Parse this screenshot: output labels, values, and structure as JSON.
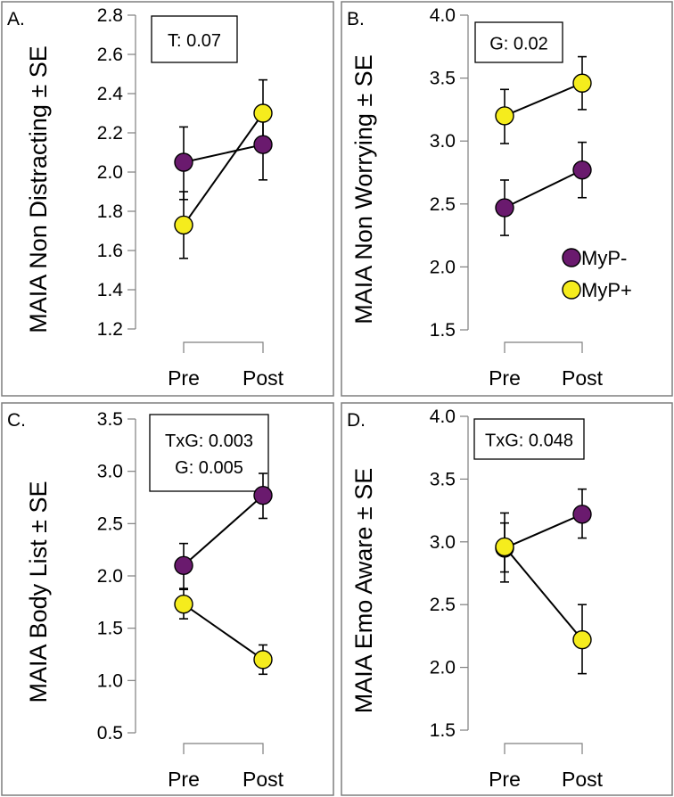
{
  "figure": {
    "colors": {
      "myp_minus": "#6a1a6e",
      "myp_plus": "#f5ec1d",
      "frame": "#7f7f7f"
    },
    "legend": [
      {
        "label": "MyP-",
        "color": "#6a1a6e"
      },
      {
        "label": "MyP+",
        "color": "#f5ec1d"
      }
    ]
  },
  "chart_data": [
    {
      "panel": "A.",
      "type": "line",
      "ylabel": "MAIA Non Distracting ± SE",
      "categories": [
        "Pre",
        "Post"
      ],
      "ylim": [
        1.2,
        2.8
      ],
      "yticks": [
        "1.2",
        "1.4",
        "1.6",
        "1.8",
        "2.0",
        "2.2",
        "2.4",
        "2.6",
        "2.8"
      ],
      "annotation": [
        "T: 0.07"
      ],
      "legend_position": "none",
      "series": [
        {
          "name": "MyP-",
          "values": [
            2.05,
            2.14
          ],
          "err_low": [
            1.86,
            1.96
          ],
          "err_high": [
            2.23,
            2.33
          ]
        },
        {
          "name": "MyP+",
          "values": [
            1.73,
            2.3
          ],
          "err_low": [
            1.56,
            2.12
          ],
          "err_high": [
            1.9,
            2.47
          ]
        }
      ]
    },
    {
      "panel": "B.",
      "type": "line",
      "ylabel": "MAIA Non Worrying ± SE",
      "categories": [
        "Pre",
        "Post"
      ],
      "ylim": [
        1.5,
        4.0
      ],
      "yticks": [
        "1.5",
        "2.0",
        "2.5",
        "3.0",
        "3.5",
        "4.0"
      ],
      "annotation": [
        "G: 0.02"
      ],
      "legend_position": "middle-right",
      "series": [
        {
          "name": "MyP-",
          "values": [
            2.47,
            2.77
          ],
          "err_low": [
            2.25,
            2.55
          ],
          "err_high": [
            2.69,
            2.99
          ]
        },
        {
          "name": "MyP+",
          "values": [
            3.2,
            3.46
          ],
          "err_low": [
            2.98,
            3.25
          ],
          "err_high": [
            3.41,
            3.67
          ]
        }
      ]
    },
    {
      "panel": "C.",
      "type": "line",
      "ylabel": "MAIA Body List ± SE",
      "categories": [
        "Pre",
        "Post"
      ],
      "ylim": [
        0.5,
        3.5
      ],
      "yticks": [
        "0.5",
        "1.0",
        "1.5",
        "2.0",
        "2.5",
        "3.0",
        "3.5"
      ],
      "annotation": [
        "TxG: 0.003",
        "G: 0.005"
      ],
      "legend_position": "none",
      "series": [
        {
          "name": "MyP-",
          "values": [
            2.1,
            2.77
          ],
          "err_low": [
            1.88,
            2.55
          ],
          "err_high": [
            2.31,
            2.98
          ]
        },
        {
          "name": "MyP+",
          "values": [
            1.73,
            1.2
          ],
          "err_low": [
            1.59,
            1.06
          ],
          "err_high": [
            1.87,
            1.34
          ]
        }
      ]
    },
    {
      "panel": "D.",
      "type": "line",
      "ylabel": "MAIA Emo Aware ± SE",
      "categories": [
        "Pre",
        "Post"
      ],
      "ylim": [
        1.5,
        4.0
      ],
      "yticks": [
        "1.5",
        "2.0",
        "2.5",
        "3.0",
        "3.5",
        "4.0"
      ],
      "annotation": [
        "TxG: 0.048"
      ],
      "legend_position": "none",
      "series": [
        {
          "name": "MyP-",
          "values": [
            2.95,
            3.22
          ],
          "err_low": [
            2.76,
            3.03
          ],
          "err_high": [
            3.15,
            3.42
          ]
        },
        {
          "name": "MyP+",
          "values": [
            2.96,
            2.22
          ],
          "err_low": [
            2.68,
            1.95
          ],
          "err_high": [
            3.23,
            2.5
          ]
        }
      ]
    }
  ]
}
